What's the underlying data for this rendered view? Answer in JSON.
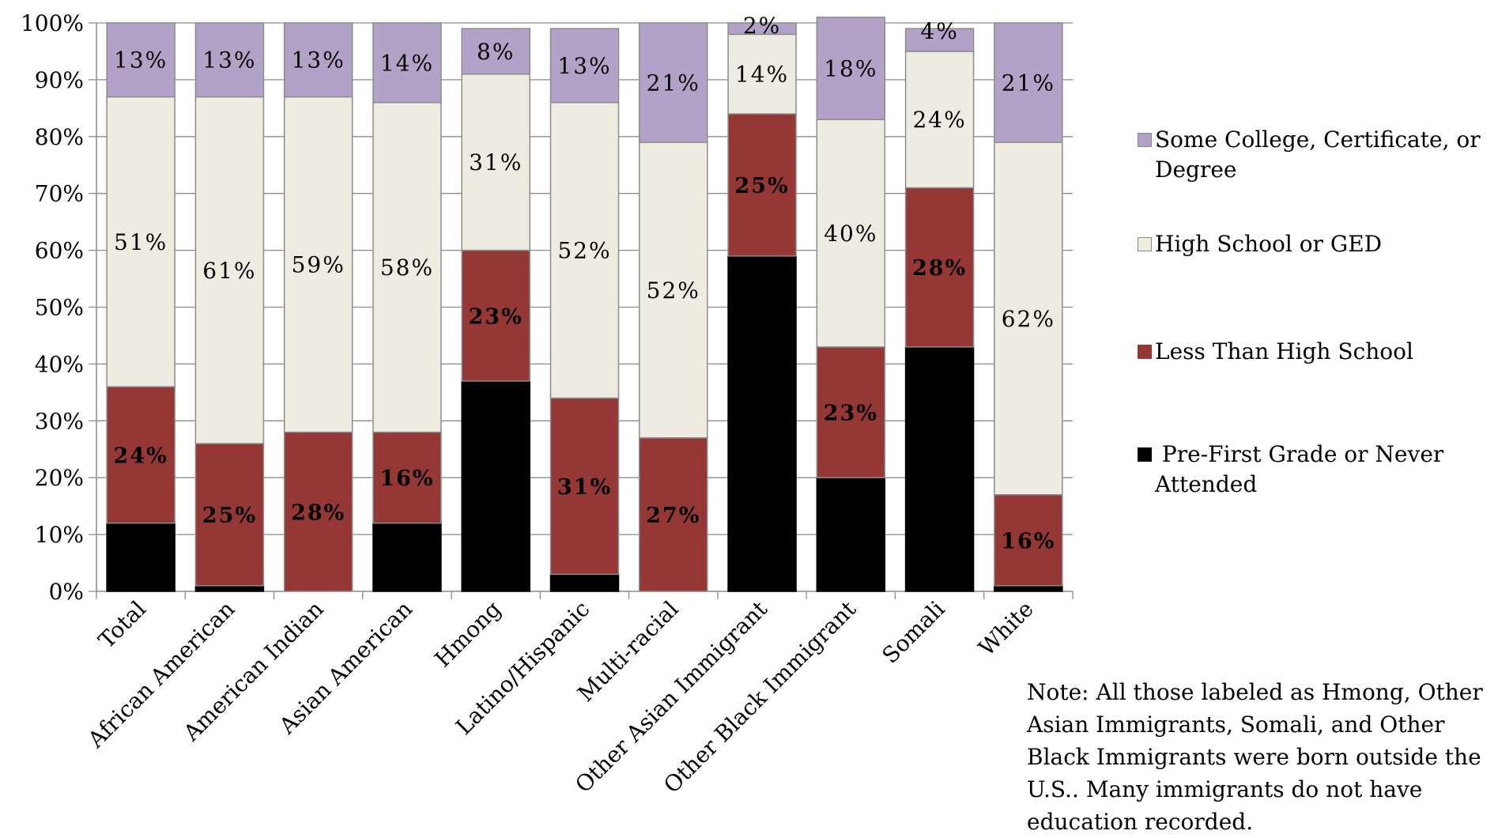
{
  "chart_data": {
    "type": "bar",
    "stacked": true,
    "percent_axis": true,
    "categories": [
      "Total",
      "African American",
      "American Indian",
      "Asian American",
      "Hmong",
      "Latino/Hispanic",
      "Multi-racial",
      "Other Asian Immigrant",
      "Other Black Immigrant",
      "Somali",
      "White"
    ],
    "y_ticks": [
      "0%",
      "10%",
      "20%",
      "30%",
      "40%",
      "50%",
      "60%",
      "70%",
      "80%",
      "90%",
      "100%"
    ],
    "ylim": [
      0,
      100
    ],
    "series": [
      {
        "name": "Pre-First Grade or Never Attended",
        "color": "#000000",
        "values": [
          12,
          1,
          0,
          12,
          37,
          3,
          0,
          59,
          20,
          43,
          1
        ],
        "labels": [
          "",
          "",
          "",
          "",
          "",
          "",
          "",
          "",
          "",
          "",
          ""
        ]
      },
      {
        "name": "Less Than High School",
        "color": "#953735",
        "values": [
          24,
          25,
          28,
          16,
          23,
          31,
          27,
          25,
          23,
          28,
          16
        ],
        "labels": [
          "24%",
          "25%",
          "28%",
          "16%",
          "23%",
          "31%",
          "27%",
          "25%",
          "23%",
          "28%",
          "16%"
        ]
      },
      {
        "name": "High School or GED",
        "color": "#eeece1",
        "values": [
          51,
          61,
          59,
          58,
          31,
          52,
          52,
          14,
          40,
          24,
          62
        ],
        "labels": [
          "51%",
          "61%",
          "59%",
          "58%",
          "31%",
          "52%",
          "52%",
          "14%",
          "40%",
          "24%",
          "62%"
        ]
      },
      {
        "name": "Some College, Certificate, or Degree",
        "color": "#b3a2c7",
        "values": [
          13,
          13,
          13,
          14,
          8,
          13,
          21,
          2,
          18,
          4,
          21
        ],
        "labels": [
          "13%",
          "13%",
          "13%",
          "14%",
          "8%",
          "13%",
          "21%",
          "2%",
          "18%",
          "4%",
          "21%"
        ]
      }
    ],
    "legend": {
      "placement": "right",
      "items": [
        {
          "label": "Some College, Certificate, or Degree",
          "color": "#b3a2c7"
        },
        {
          "label": "High School or GED",
          "color": "#eeece1"
        },
        {
          "label": "Less Than High School",
          "color": "#953735"
        },
        {
          "label": " Pre-First Grade or Never Attended",
          "color": "#000000"
        }
      ]
    },
    "grid": "horizontal",
    "title": "",
    "xlabel": "",
    "ylabel": ""
  },
  "note": "Note: All those labeled as Hmong, Other Asian Immigrants, Somali, and Other Black Immigrants were born outside the U.S.. Many immigrants do not have education recorded."
}
